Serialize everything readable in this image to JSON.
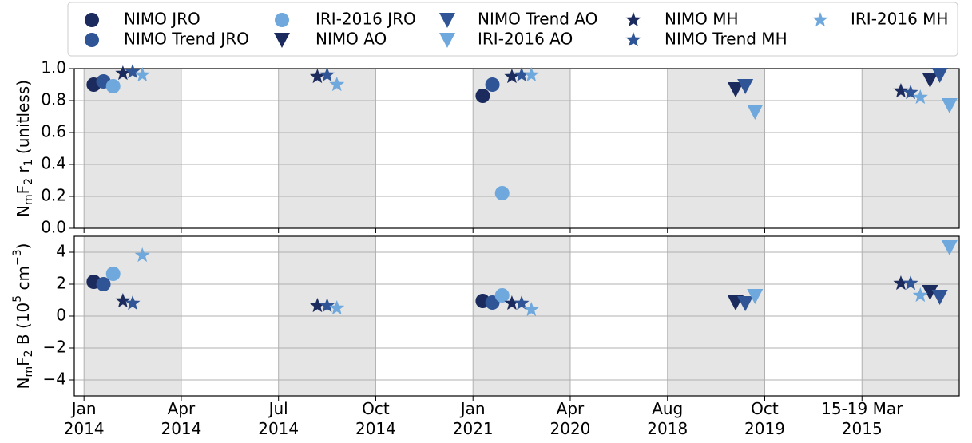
{
  "chart_data": [
    {
      "type": "scatter",
      "ylabel": [
        {
          "text": "N"
        },
        {
          "text": "m",
          "shift": "sub"
        },
        {
          "text": "F"
        },
        {
          "text": "2",
          "shift": "sub"
        },
        {
          "text": " r"
        },
        {
          "text": "1",
          "shift": "sub"
        },
        {
          "text": " (unitless)"
        }
      ],
      "xlim": [
        -0.1,
        9
      ],
      "xticks": [
        0,
        1,
        2,
        3,
        4,
        5,
        6,
        7,
        8
      ],
      "ylim": [
        0,
        1
      ],
      "yticks": [
        {
          "value": 0,
          "label": "0.0"
        },
        {
          "value": 0.2,
          "label": "0.2"
        },
        {
          "value": 0.4,
          "label": "0.4"
        },
        {
          "value": 0.6,
          "label": "0.6"
        },
        {
          "value": 0.8,
          "label": "0.8"
        },
        {
          "value": 1,
          "label": "1.0"
        }
      ],
      "grid": true,
      "shade_spans": [
        [
          0,
          1
        ],
        [
          2,
          3
        ],
        [
          4,
          5
        ],
        [
          6,
          7
        ],
        [
          8,
          9
        ]
      ],
      "shade_color": "#e5e5e5",
      "series": [
        {
          "name": "NIMO JRO",
          "color": "#1c2b5e",
          "marker": "circle",
          "x": [
            0.1,
            4.1
          ],
          "values": [
            0.9,
            0.83
          ]
        },
        {
          "name": "NIMO Trend JRO",
          "color": "#2f5597",
          "marker": "circle",
          "x": [
            0.2,
            4.2
          ],
          "values": [
            0.92,
            0.9
          ]
        },
        {
          "name": "IRI-2016 JRO",
          "color": "#6fa8dc",
          "marker": "circle",
          "x": [
            0.3,
            4.3
          ],
          "values": [
            0.89,
            0.22
          ]
        },
        {
          "name": "NIMO AO",
          "color": "#1c2b5e",
          "marker": "triangle",
          "x": [
            6.7,
            8.7
          ],
          "values": [
            0.87,
            0.93
          ]
        },
        {
          "name": "NIMO Trend AO",
          "color": "#2f5597",
          "marker": "triangle",
          "x": [
            6.8,
            8.8
          ],
          "values": [
            0.89,
            0.96
          ]
        },
        {
          "name": "IRI-2016 AO",
          "color": "#6fa8dc",
          "marker": "triangle",
          "x": [
            6.9,
            8.9
          ],
          "values": [
            0.73,
            0.77
          ]
        },
        {
          "name": "NIMO MH",
          "color": "#1c2b5e",
          "marker": "star",
          "x": [
            0.4,
            2.4,
            4.4,
            8.4
          ],
          "values": [
            0.97,
            0.95,
            0.95,
            0.86
          ]
        },
        {
          "name": "NIMO Trend MH",
          "color": "#2f5597",
          "marker": "star",
          "x": [
            0.5,
            2.5,
            4.5,
            8.5
          ],
          "values": [
            0.98,
            0.96,
            0.96,
            0.85
          ]
        },
        {
          "name": "IRI-2016 MH",
          "color": "#6fa8dc",
          "marker": "star",
          "x": [
            0.6,
            2.6,
            4.6,
            8.6
          ],
          "values": [
            0.96,
            0.9,
            0.96,
            0.82
          ]
        }
      ]
    },
    {
      "type": "scatter",
      "ylabel": [
        {
          "text": "N"
        },
        {
          "text": "m",
          "shift": "sub"
        },
        {
          "text": "F"
        },
        {
          "text": "2",
          "shift": "sub"
        },
        {
          "text": " B (10"
        },
        {
          "text": "5",
          "shift": "sup"
        },
        {
          "text": " cm"
        },
        {
          "text": "−3",
          "shift": "sup"
        },
        {
          "text": ")"
        }
      ],
      "xlim": [
        -0.1,
        9
      ],
      "xticks": [
        {
          "value": 0,
          "label": [
            "Jan",
            "2014"
          ]
        },
        {
          "value": 1,
          "label": [
            "Apr",
            "2014"
          ]
        },
        {
          "value": 2,
          "label": [
            "Jul",
            "2014"
          ]
        },
        {
          "value": 3,
          "label": [
            "Oct",
            "2014"
          ]
        },
        {
          "value": 4,
          "label": [
            "Jan",
            "2021"
          ]
        },
        {
          "value": 5,
          "label": [
            "Apr",
            "2020"
          ]
        },
        {
          "value": 6,
          "label": [
            "Aug",
            "2018"
          ]
        },
        {
          "value": 7,
          "label": [
            "Oct",
            "2019"
          ]
        },
        {
          "value": 8,
          "label": [
            "15-19 Mar",
            "2015"
          ]
        }
      ],
      "ylim": [
        -5,
        5
      ],
      "yticks": [
        {
          "value": -4,
          "label": "−4"
        },
        {
          "value": -2,
          "label": "−2"
        },
        0,
        2,
        4
      ],
      "grid": true,
      "shade_spans": [
        [
          0,
          1
        ],
        [
          2,
          3
        ],
        [
          4,
          5
        ],
        [
          6,
          7
        ],
        [
          8,
          9
        ]
      ],
      "shade_color": "#e5e5e5",
      "series": [
        {
          "color": "#1c2b5e",
          "marker": "circle",
          "x": [
            0.1,
            4.1
          ],
          "values": [
            2.15,
            0.95
          ]
        },
        {
          "color": "#2f5597",
          "marker": "circle",
          "x": [
            0.2,
            4.2
          ],
          "values": [
            2.0,
            0.85
          ]
        },
        {
          "color": "#6fa8dc",
          "marker": "circle",
          "x": [
            0.3,
            4.3
          ],
          "values": [
            2.65,
            1.3
          ]
        },
        {
          "color": "#1c2b5e",
          "marker": "triangle",
          "x": [
            6.7,
            8.7
          ],
          "values": [
            0.85,
            1.5
          ]
        },
        {
          "color": "#2f5597",
          "marker": "triangle",
          "x": [
            6.8,
            8.8
          ],
          "values": [
            0.8,
            1.2
          ]
        },
        {
          "color": "#6fa8dc",
          "marker": "triangle",
          "x": [
            6.9,
            8.9
          ],
          "values": [
            1.25,
            4.3
          ]
        },
        {
          "color": "#1c2b5e",
          "marker": "star",
          "x": [
            0.4,
            2.4,
            4.4,
            8.4
          ],
          "values": [
            0.95,
            0.65,
            0.8,
            2.05
          ]
        },
        {
          "color": "#2f5597",
          "marker": "star",
          "x": [
            0.5,
            2.5,
            4.5,
            8.5
          ],
          "values": [
            0.8,
            0.65,
            0.8,
            2.05
          ]
        },
        {
          "color": "#6fa8dc",
          "marker": "star",
          "x": [
            0.6,
            2.6,
            4.6,
            8.6
          ],
          "values": [
            3.8,
            0.5,
            0.4,
            1.3
          ]
        }
      ]
    }
  ]
}
